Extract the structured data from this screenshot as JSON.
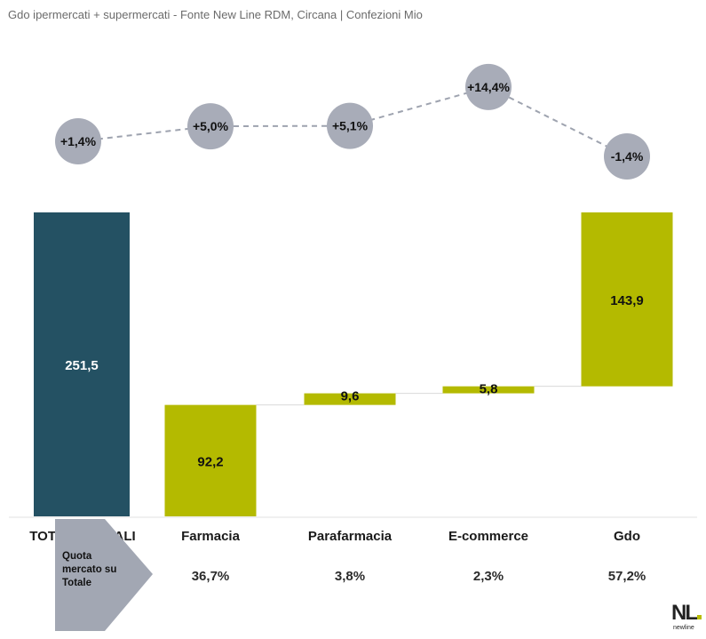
{
  "subtitle": "Gdo ipermercati + supermercati - Fonte New Line RDM, Circana | Confezioni Mio",
  "chart_data": {
    "type": "waterfall",
    "categories": [
      "TOTALE CANALI",
      "Farmacia",
      "Parafarmacia",
      "E-commerce",
      "Gdo"
    ],
    "values": [
      251.5,
      92.2,
      9.6,
      5.8,
      143.9
    ],
    "value_labels": [
      "251,5",
      "92,2",
      "9,6",
      "5,8",
      "143,9"
    ],
    "growth_labels": [
      "+1,4%",
      "+5,0%",
      "+5,1%",
      "+14,4%",
      "-1,4%"
    ],
    "growth_values": [
      1.4,
      5.0,
      5.1,
      14.4,
      -1.4
    ],
    "share_labels": [
      "36,7%",
      "3,8%",
      "2,3%",
      "57,2%"
    ],
    "share_caption": "Quota mercato su Totale",
    "colors": {
      "total": "#245163",
      "component": "#b4ba00",
      "bubble": "#a8acb8",
      "trend_line": "#9ea3af",
      "connector": "#d9d9d9"
    }
  },
  "logo": {
    "text": "NL",
    "subtext": "newline"
  }
}
